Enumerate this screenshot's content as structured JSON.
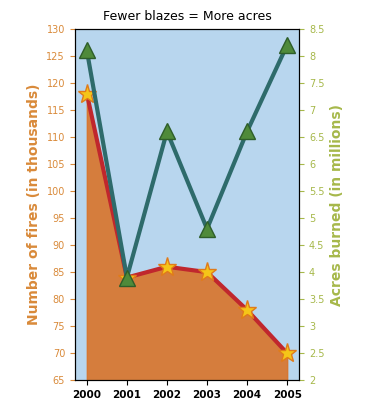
{
  "chart_data": {
    "type": "line",
    "title": "Fewer blazes = More acres",
    "categories": [
      "2000",
      "2001",
      "2002",
      "2003",
      "2004",
      "2005"
    ],
    "series": [
      {
        "name": "Number of fires",
        "color": "#c0272d",
        "marker": "star",
        "values": [
          118,
          84,
          86,
          85,
          78,
          70
        ]
      },
      {
        "name": "Acres burned",
        "color": "#2e6b6b",
        "marker": "triangle",
        "axis": "y2",
        "values": [
          8.1,
          3.9,
          6.6,
          4.8,
          6.6,
          8.2
        ]
      }
    ],
    "y_label": "Number of fires (in thousands)",
    "y2_label": "Acres burned (in millions)",
    "ylim": [
      65,
      130
    ],
    "yticks": [
      65,
      70,
      75,
      80,
      85,
      90,
      95,
      100,
      105,
      110,
      115,
      120,
      125,
      130
    ],
    "y2lim": [
      2,
      8.5
    ],
    "y2ticks": [
      2,
      2.5,
      3,
      3.5,
      4,
      4.5,
      5,
      5.5,
      6,
      6.5,
      7,
      7.5,
      8,
      8.5
    ],
    "grid": false
  }
}
